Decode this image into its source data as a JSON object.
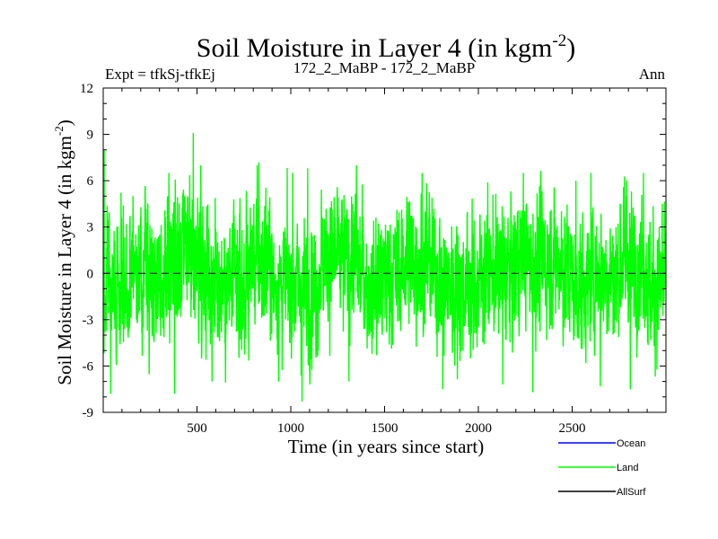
{
  "chart_data": {
    "type": "line",
    "title": "Soil Moisture in Layer 4 (in kgm",
    "title_exponent": "-2",
    "title_close": ")",
    "subtitle_left": "Expt = tfkSj-tfkEj",
    "subtitle_center": "172_2_MaBP - 172_2_MaBP",
    "subtitle_right": "Ann",
    "xlabel": "Time (in years since start)",
    "ylabel": "Soil Moisture in Layer 4 (in kgm",
    "ylabel_exponent": "-2",
    "ylabel_close": ")",
    "xlim": [
      0,
      3000
    ],
    "ylim": [
      -9,
      12
    ],
    "xticks": [
      500,
      1000,
      1500,
      2000,
      2500
    ],
    "yticks": [
      -9,
      -6,
      -3,
      0,
      3,
      6,
      9,
      12
    ],
    "zero_line": 0,
    "series": [
      {
        "name": "Ocean",
        "color": "#0000ff",
        "values": []
      },
      {
        "name": "Land",
        "color": "#00ff00",
        "n_points": 3000,
        "x_start": 1,
        "x_step": 1,
        "mean": 0,
        "amplitude_std": 2.3,
        "min": -8.3,
        "max": 9.1,
        "max_at": 480,
        "min_at": 1060,
        "low_phases": [
          [
            0,
            120
          ],
          [
            600,
            760
          ],
          [
            900,
            1150
          ],
          [
            1400,
            1500
          ],
          [
            1800,
            2000
          ],
          [
            2500,
            2600
          ],
          [
            2900,
            3000
          ]
        ],
        "high_phases": [
          [
            420,
            560
          ],
          [
            780,
            900
          ],
          [
            1150,
            1350
          ],
          [
            1600,
            1750
          ],
          [
            2200,
            2450
          ],
          [
            2750,
            2950
          ]
        ],
        "peaks": [
          [
            5,
            8.0
          ],
          [
            350,
            6.5
          ],
          [
            480,
            9.1
          ],
          [
            520,
            7.0
          ],
          [
            830,
            7.2
          ],
          [
            1010,
            6.5
          ],
          [
            1090,
            6.8
          ],
          [
            1350,
            7.0
          ],
          [
            1700,
            6.5
          ],
          [
            2050,
            5.9
          ],
          [
            2240,
            6.5
          ],
          [
            2520,
            6.0
          ],
          [
            2600,
            6.5
          ],
          [
            2790,
            6.0
          ],
          [
            2880,
            6.5
          ],
          [
            2980,
            4.5
          ]
        ],
        "troughs": [
          [
            40,
            -7.8
          ],
          [
            380,
            -7.8
          ],
          [
            580,
            -7.0
          ],
          [
            1060,
            -8.3
          ],
          [
            1310,
            -7.0
          ],
          [
            1810,
            -7.5
          ],
          [
            2130,
            -7.2
          ],
          [
            2290,
            -7.7
          ],
          [
            2650,
            -7.3
          ],
          [
            2810,
            -7.5
          ]
        ]
      },
      {
        "name": "AllSurf",
        "color": "#000000",
        "values": []
      }
    ],
    "legend_position": "bottom-right"
  }
}
